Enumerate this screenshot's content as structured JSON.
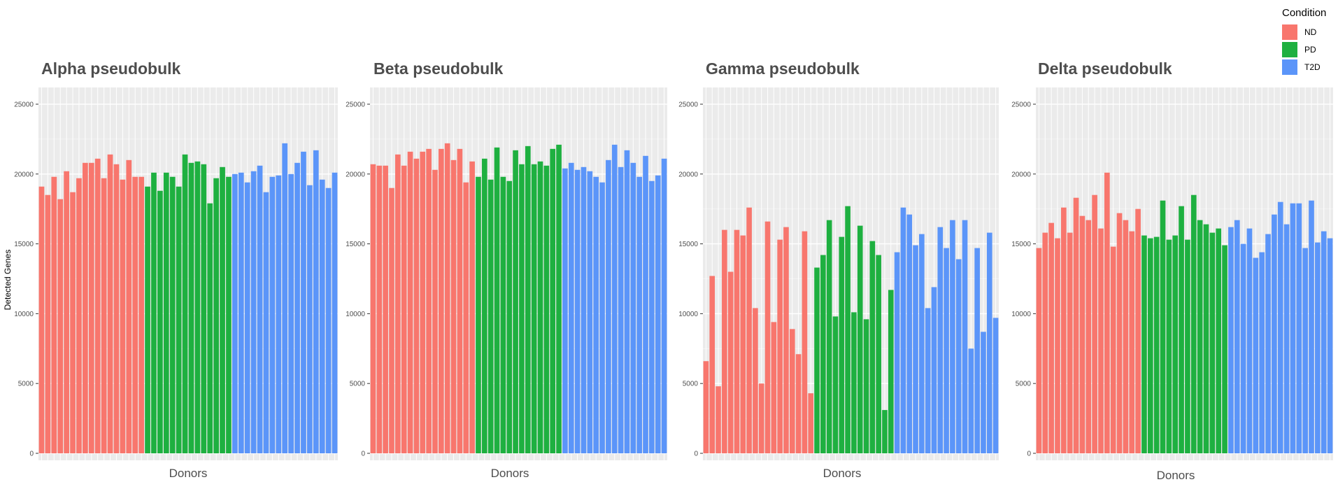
{
  "ylabel": "Detected Genes",
  "legend": {
    "title": "Condition",
    "items": [
      {
        "label": "ND",
        "color": "#F8766D"
      },
      {
        "label": "PD",
        "color": "#1EB040"
      },
      {
        "label": "T2D",
        "color": "#5B95F9"
      }
    ]
  },
  "colors": {
    "ND": "#F8766D",
    "PD": "#1EB040",
    "T2D": "#5B95F9",
    "panel": "#EBEBEB",
    "grid": "#FFFFFF",
    "title": "#4D4D4D"
  },
  "chart_data": [
    {
      "type": "bar",
      "title": "Alpha pseudobulk",
      "xlabel": "Donors",
      "ylabel": "Detected Genes",
      "ylim": [
        0,
        26200
      ],
      "yticks": [
        0,
        5000,
        10000,
        15000,
        20000,
        25000
      ],
      "grid": true,
      "series": [
        {
          "name": "ND",
          "values": [
            19100,
            18500,
            19800,
            18200,
            20200,
            18700,
            19700,
            20800,
            20800,
            21100,
            19700,
            21400,
            20700,
            19600,
            21000,
            19800,
            19800
          ]
        },
        {
          "name": "PD",
          "values": [
            19100,
            20100,
            18800,
            20100,
            19800,
            19100,
            21400,
            20800,
            20900,
            20700,
            17900,
            19700,
            20500,
            19800
          ]
        },
        {
          "name": "T2D",
          "values": [
            20000,
            20100,
            19400,
            20200,
            20600,
            18700,
            19800,
            19900,
            22200,
            20000,
            20800,
            21600,
            19200,
            21700,
            19600,
            19000,
            20100
          ]
        }
      ]
    },
    {
      "type": "bar",
      "title": "Beta pseudobulk",
      "xlabel": "Donors",
      "ylabel": "",
      "ylim": [
        0,
        26200
      ],
      "yticks": [
        0,
        5000,
        10000,
        15000,
        20000,
        25000
      ],
      "grid": true,
      "series": [
        {
          "name": "ND",
          "values": [
            20700,
            20600,
            20600,
            19000,
            21400,
            20600,
            21600,
            21100,
            21600,
            21800,
            20300,
            21800,
            22200,
            21000,
            21800,
            19400,
            20900
          ]
        },
        {
          "name": "PD",
          "values": [
            19800,
            21100,
            19600,
            21900,
            19800,
            19500,
            21700,
            20700,
            22000,
            20700,
            20900,
            20600,
            21800,
            22100
          ]
        },
        {
          "name": "T2D",
          "values": [
            20400,
            20800,
            20300,
            20500,
            20200,
            19800,
            19400,
            21000,
            22100,
            20500,
            21700,
            20800,
            19800,
            21300,
            19500,
            19900,
            21100
          ]
        }
      ]
    },
    {
      "type": "bar",
      "title": "Gamma pseudobulk",
      "xlabel": "Donors",
      "ylabel": "",
      "ylim": [
        0,
        26200
      ],
      "yticks": [
        0,
        5000,
        10000,
        15000,
        20000,
        25000
      ],
      "grid": true,
      "series": [
        {
          "name": "ND",
          "values": [
            6600,
            12700,
            4800,
            16000,
            13000,
            16000,
            15600,
            17600,
            10400,
            5000,
            16600,
            9400,
            15300,
            16200,
            8900,
            7100,
            15900,
            4300
          ]
        },
        {
          "name": "PD",
          "values": [
            13300,
            14200,
            16700,
            9800,
            15500,
            17700,
            10100,
            16300,
            9600,
            15200,
            14200,
            3100,
            11700
          ]
        },
        {
          "name": "T2D",
          "values": [
            14400,
            17600,
            17100,
            14900,
            15700,
            10400,
            11900,
            16200,
            14700,
            16700,
            13900,
            16700,
            7500,
            14700,
            8700,
            15800,
            9700
          ]
        }
      ]
    },
    {
      "type": "bar",
      "title": "Delta pseudobulk",
      "xlabel": "Donors",
      "ylabel": "",
      "ylim": [
        0,
        26200
      ],
      "yticks": [
        0,
        5000,
        10000,
        15000,
        20000,
        25000
      ],
      "grid": true,
      "series": [
        {
          "name": "ND",
          "values": [
            14700,
            15800,
            16500,
            15400,
            17600,
            15800,
            18300,
            17000,
            16700,
            18500,
            16100,
            20100,
            14800,
            17200,
            16700,
            15900,
            17500
          ]
        },
        {
          "name": "PD",
          "values": [
            15600,
            15400,
            15500,
            18100,
            15300,
            15600,
            17700,
            15300,
            18500,
            16700,
            16400,
            15800,
            16100,
            14900
          ]
        },
        {
          "name": "T2D",
          "values": [
            16200,
            16700,
            15000,
            16100,
            14000,
            14400,
            15700,
            17100,
            18000,
            16400,
            17900,
            17900,
            14700,
            18100,
            15100,
            15900,
            15400
          ]
        }
      ]
    }
  ]
}
